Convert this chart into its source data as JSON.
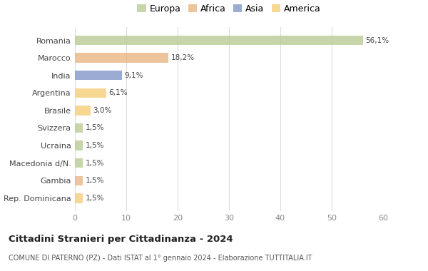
{
  "countries": [
    "Romania",
    "Marocco",
    "India",
    "Argentina",
    "Brasile",
    "Svizzera",
    "Ucraina",
    "Macedonia d/N.",
    "Gambia",
    "Rep. Dominicana"
  ],
  "values": [
    56.1,
    18.2,
    9.1,
    6.1,
    3.0,
    1.5,
    1.5,
    1.5,
    1.5,
    1.5
  ],
  "labels": [
    "56,1%",
    "18,2%",
    "9,1%",
    "6,1%",
    "3,0%",
    "1,5%",
    "1,5%",
    "1,5%",
    "1,5%",
    "1,5%"
  ],
  "colors": [
    "#b5c98e",
    "#e8b07a",
    "#7a8fc4",
    "#f5cc6e",
    "#f5cc6e",
    "#b5c98e",
    "#b5c98e",
    "#b5c98e",
    "#e8b07a",
    "#f5cc6e"
  ],
  "continents": [
    "Europa",
    "Africa",
    "Asia",
    "America"
  ],
  "legend_colors": [
    "#b5c98e",
    "#e8b07a",
    "#7a8fc4",
    "#f5cc6e"
  ],
  "title": "Cittadini Stranieri per Cittadinanza - 2024",
  "subtitle": "COMUNE DI PATERNO (PZ) - Dati ISTAT al 1° gennaio 2024 - Elaborazione TUTTITALIA.IT",
  "xlim": [
    0,
    60
  ],
  "xticks": [
    0,
    10,
    20,
    30,
    40,
    50,
    60
  ],
  "background_color": "#ffffff",
  "grid_color": "#dddddd",
  "bar_height": 0.55,
  "bar_alpha": 0.75
}
